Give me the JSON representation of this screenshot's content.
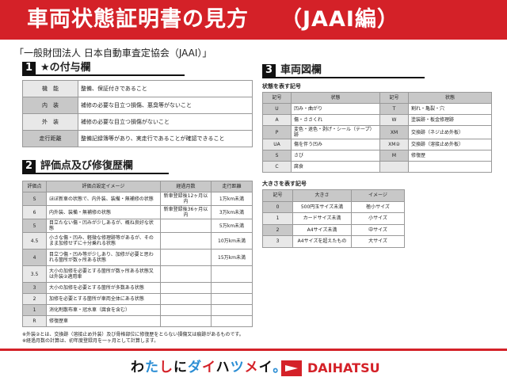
{
  "header": {
    "title": "車両状態証明書の見方",
    "edition": "（JAAI編）"
  },
  "org": "「一般財団法人 日本自動車査定協会（JAAI）」",
  "section1": {
    "num": "1",
    "title": "★の付与欄",
    "rows": [
      {
        "k": "機　能",
        "v": "整備、保証付きであること"
      },
      {
        "k": "内　装",
        "v": "補修の必要な目立つ損傷、悪臭等がないこと"
      },
      {
        "k": "外　装",
        "v": "補修の必要な目立つ損傷がないこと"
      },
      {
        "k": "走行距離",
        "v": "整備記録簿等があり、実走行であることが確認できること"
      }
    ]
  },
  "section2": {
    "num": "2",
    "title": "評価点及び修復歴欄",
    "headers": [
      "評価点",
      "評価点設定イメージ",
      "経過月数",
      "走行距離"
    ],
    "rows": [
      [
        "S",
        "ほぼ新車の状態で、内外装、装備・無補修の状態",
        "新車登録後12ヶ月以内",
        "1万km未満"
      ],
      [
        "6",
        "内外装、装備・無補修の状態",
        "新車登録後36ヶ月以内",
        "3万km未満"
      ],
      [
        "5",
        "目立たない傷・凹みが少しあるが、概ね良好な状態",
        "",
        "5万km未満"
      ],
      [
        "4.5",
        "小さな傷・凹み、軽微な修理跡等があるが、そのまま加修せずに十分乗れる状態",
        "",
        "10万km未満"
      ],
      [
        "4",
        "目立つ傷・凹み等が少しあり、加修が必要と思われる箇所が数ヶ所ある状態",
        "",
        "15万km未満"
      ],
      [
        "3.5",
        "大小の加修を必要とする箇所が数ヶ所ある状態又は外装②適用車",
        "",
        ""
      ],
      [
        "3",
        "大小の加修を必要とする箇所が多数ある状態",
        "",
        ""
      ],
      [
        "2",
        "加修を必要とする箇所が車両全体にある状態",
        "",
        ""
      ],
      [
        "1",
        "消化剤散布車・冠水車（腐食を含む）",
        "",
        ""
      ],
      [
        "R",
        "修復歴車",
        "",
        ""
      ]
    ]
  },
  "section3": {
    "num": "3",
    "title": "車両図欄",
    "state_label": "状態を表す記号",
    "state_headers": [
      "記号",
      "状態",
      "記号",
      "状態"
    ],
    "state_rows": [
      [
        "U",
        "凹み・曲がり",
        "T",
        "割れ・亀裂・穴"
      ],
      [
        "A",
        "傷・ささくれ",
        "W",
        "塗装跡・板金修理跡"
      ],
      [
        "P",
        "変色・退色・剥げ・シール（テープ）跡",
        "XM",
        "交換跡（ネジ止め外板）"
      ],
      [
        "UA",
        "傷を伴う凹み",
        "XM②",
        "交換跡（溶接止め外板）"
      ],
      [
        "S",
        "さび",
        "M",
        "修復歴"
      ],
      [
        "C",
        "腐食",
        "",
        ""
      ]
    ],
    "size_label": "大きさを表す記号",
    "size_headers": [
      "記号",
      "大きさ",
      "イメージ"
    ],
    "size_rows": [
      [
        "0",
        "500円玉サイズ未満",
        "極小サイズ"
      ],
      [
        "1",
        "カードサイズ未満",
        "小サイズ"
      ],
      [
        "2",
        "A4サイズ未満",
        "中サイズ"
      ],
      [
        "3",
        "A4サイズを超えたもの",
        "大サイズ"
      ]
    ]
  },
  "notes": [
    "※外装②とは、交換跡（溶接止め外装）及び骨格部位に修復歴をとらない損傷又は痕跡があるものです。",
    "※経過月数の計算は、初年度登録月を一ヶ月として計算します。"
  ],
  "footer": {
    "slogan": "わたしにダイハツメイ。",
    "brand": "DAIHATSU"
  },
  "colors": {
    "red": "#d42128"
  }
}
